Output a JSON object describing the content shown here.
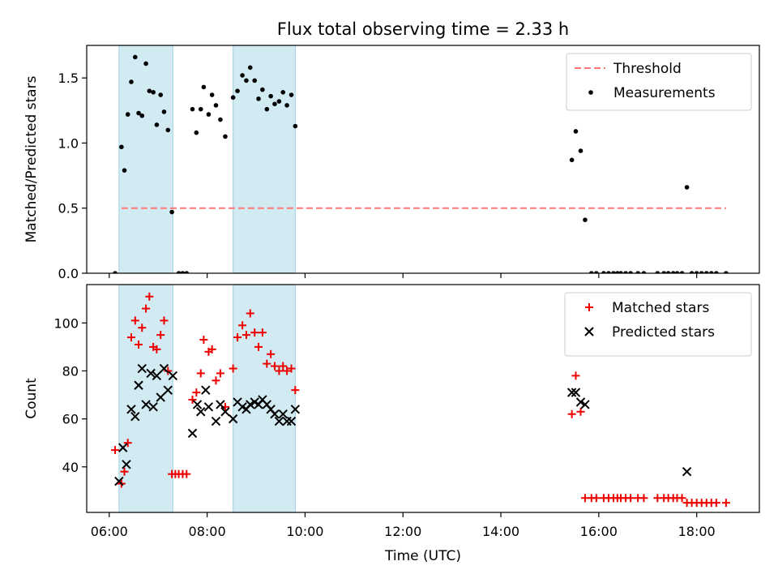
{
  "figure": {
    "title": "Flux total observing time = 2.33 h",
    "xlabel": "Time (UTC)"
  },
  "colors": {
    "threshold": "#ff7777",
    "measurement": "#000000",
    "matched": "#ee0000",
    "predicted": "#000000",
    "span_fill": "#add8e6"
  },
  "chart_data": [
    {
      "type": "scatter",
      "panel": "top",
      "title": "Flux total observing time = 2.33 h",
      "xlabel": "",
      "ylabel": "Matched/Predicted stars",
      "xlim": [
        5.54,
        19.28
      ],
      "ylim": [
        0,
        1.75
      ],
      "x_ticks": [
        6,
        8,
        10,
        12,
        14,
        16,
        18
      ],
      "x_tick_labels": [
        "06:00",
        "08:00",
        "10:00",
        "12:00",
        "14:00",
        "16:00",
        "18:00"
      ],
      "y_ticks": [
        0.0,
        0.5,
        1.0,
        1.5
      ],
      "y_tick_labels": [
        "0.0",
        "0.5",
        "1.0",
        "1.5"
      ],
      "shaded_spans": [
        [
          6.2,
          7.3
        ],
        [
          8.53,
          9.8
        ]
      ],
      "legend_position": "top-right",
      "threshold": {
        "name": "Threshold",
        "y": 0.5,
        "x_range": [
          6.25,
          18.6
        ]
      },
      "series": [
        {
          "name": "Measurements",
          "marker": "dot",
          "points": [
            [
              6.12,
              0.0
            ],
            [
              6.25,
              0.97
            ],
            [
              6.31,
              0.79
            ],
            [
              6.38,
              1.22
            ],
            [
              6.45,
              1.47
            ],
            [
              6.53,
              1.66
            ],
            [
              6.6,
              1.23
            ],
            [
              6.67,
              1.21
            ],
            [
              6.75,
              1.61
            ],
            [
              6.82,
              1.4
            ],
            [
              6.9,
              1.39
            ],
            [
              6.97,
              1.14
            ],
            [
              7.05,
              1.37
            ],
            [
              7.12,
              1.24
            ],
            [
              7.2,
              1.1
            ],
            [
              7.28,
              0.47
            ],
            [
              7.42,
              0.0
            ],
            [
              7.5,
              0.0
            ],
            [
              7.58,
              0.0
            ],
            [
              7.7,
              1.26
            ],
            [
              7.78,
              1.08
            ],
            [
              7.87,
              1.26
            ],
            [
              7.93,
              1.43
            ],
            [
              8.03,
              1.22
            ],
            [
              8.1,
              1.37
            ],
            [
              8.18,
              1.29
            ],
            [
              8.27,
              1.18
            ],
            [
              8.37,
              1.05
            ],
            [
              8.53,
              1.35
            ],
            [
              8.62,
              1.4
            ],
            [
              8.72,
              1.52
            ],
            [
              8.8,
              1.48
            ],
            [
              8.88,
              1.58
            ],
            [
              8.97,
              1.48
            ],
            [
              9.05,
              1.34
            ],
            [
              9.13,
              1.41
            ],
            [
              9.22,
              1.26
            ],
            [
              9.3,
              1.36
            ],
            [
              9.38,
              1.3
            ],
            [
              9.47,
              1.32
            ],
            [
              9.55,
              1.39
            ],
            [
              9.63,
              1.29
            ],
            [
              9.72,
              1.37
            ],
            [
              9.8,
              1.13
            ],
            [
              15.45,
              0.87
            ],
            [
              15.53,
              1.09
            ],
            [
              15.63,
              0.94
            ],
            [
              15.72,
              0.41
            ],
            [
              15.85,
              0.0
            ],
            [
              15.95,
              0.0
            ],
            [
              16.1,
              0.0
            ],
            [
              16.2,
              0.0
            ],
            [
              16.3,
              0.0
            ],
            [
              16.38,
              0.0
            ],
            [
              16.45,
              0.0
            ],
            [
              16.55,
              0.0
            ],
            [
              16.65,
              0.0
            ],
            [
              16.8,
              0.0
            ],
            [
              16.92,
              0.0
            ],
            [
              17.2,
              0.0
            ],
            [
              17.33,
              0.0
            ],
            [
              17.42,
              0.0
            ],
            [
              17.52,
              0.0
            ],
            [
              17.6,
              0.0
            ],
            [
              17.7,
              0.0
            ],
            [
              17.8,
              0.66
            ],
            [
              17.9,
              0.0
            ],
            [
              18.0,
              0.0
            ],
            [
              18.1,
              0.0
            ],
            [
              18.2,
              0.0
            ],
            [
              18.3,
              0.0
            ],
            [
              18.4,
              0.0
            ],
            [
              18.6,
              0.0
            ]
          ]
        }
      ]
    },
    {
      "type": "scatter",
      "panel": "bottom",
      "title": "",
      "xlabel": "Time (UTC)",
      "ylabel": "Count",
      "xlim": [
        5.54,
        19.28
      ],
      "ylim": [
        21,
        116
      ],
      "x_ticks": [
        6,
        8,
        10,
        12,
        14,
        16,
        18
      ],
      "x_tick_labels": [
        "06:00",
        "08:00",
        "10:00",
        "12:00",
        "14:00",
        "16:00",
        "18:00"
      ],
      "y_ticks": [
        40,
        60,
        80,
        100
      ],
      "y_tick_labels": [
        "40",
        "60",
        "80",
        "100"
      ],
      "shaded_spans": [
        [
          6.2,
          7.3
        ],
        [
          8.53,
          9.8
        ]
      ],
      "legend_position": "top-right",
      "series": [
        {
          "name": "Matched stars",
          "marker": "plus",
          "points": [
            [
              6.12,
              47
            ],
            [
              6.25,
              33
            ],
            [
              6.31,
              38
            ],
            [
              6.38,
              50
            ],
            [
              6.45,
              94
            ],
            [
              6.53,
              101
            ],
            [
              6.6,
              91
            ],
            [
              6.67,
              98
            ],
            [
              6.75,
              106
            ],
            [
              6.82,
              111
            ],
            [
              6.9,
              90
            ],
            [
              6.97,
              89
            ],
            [
              7.05,
              95
            ],
            [
              7.12,
              101
            ],
            [
              7.2,
              80
            ],
            [
              7.28,
              37
            ],
            [
              7.35,
              37
            ],
            [
              7.42,
              37
            ],
            [
              7.5,
              37
            ],
            [
              7.58,
              37
            ],
            [
              7.7,
              68
            ],
            [
              7.78,
              71
            ],
            [
              7.87,
              79
            ],
            [
              7.93,
              93
            ],
            [
              8.03,
              88
            ],
            [
              8.1,
              89
            ],
            [
              8.18,
              76
            ],
            [
              8.27,
              79
            ],
            [
              8.37,
              65
            ],
            [
              8.53,
              81
            ],
            [
              8.62,
              94
            ],
            [
              8.72,
              99
            ],
            [
              8.8,
              95
            ],
            [
              8.88,
              104
            ],
            [
              8.97,
              96
            ],
            [
              9.05,
              90
            ],
            [
              9.13,
              96
            ],
            [
              9.22,
              83
            ],
            [
              9.3,
              87
            ],
            [
              9.38,
              82
            ],
            [
              9.47,
              80
            ],
            [
              9.55,
              82
            ],
            [
              9.63,
              80
            ],
            [
              9.72,
              81
            ],
            [
              9.8,
              72
            ],
            [
              15.45,
              62
            ],
            [
              15.53,
              78
            ],
            [
              15.63,
              63
            ],
            [
              15.72,
              27
            ],
            [
              15.85,
              27
            ],
            [
              15.95,
              27
            ],
            [
              16.1,
              27
            ],
            [
              16.2,
              27
            ],
            [
              16.3,
              27
            ],
            [
              16.38,
              27
            ],
            [
              16.45,
              27
            ],
            [
              16.55,
              27
            ],
            [
              16.65,
              27
            ],
            [
              16.8,
              27
            ],
            [
              16.92,
              27
            ],
            [
              17.2,
              27
            ],
            [
              17.33,
              27
            ],
            [
              17.42,
              27
            ],
            [
              17.52,
              27
            ],
            [
              17.6,
              27
            ],
            [
              17.7,
              27
            ],
            [
              17.8,
              25
            ],
            [
              17.9,
              25
            ],
            [
              18.0,
              25
            ],
            [
              18.1,
              25
            ],
            [
              18.2,
              25
            ],
            [
              18.3,
              25
            ],
            [
              18.4,
              25
            ],
            [
              18.6,
              25
            ]
          ]
        },
        {
          "name": "Predicted stars",
          "marker": "x",
          "points": [
            [
              6.2,
              34
            ],
            [
              6.28,
              48
            ],
            [
              6.35,
              41
            ],
            [
              6.45,
              64
            ],
            [
              6.53,
              61
            ],
            [
              6.6,
              74
            ],
            [
              6.67,
              81
            ],
            [
              6.75,
              66
            ],
            [
              6.85,
              79
            ],
            [
              6.9,
              65
            ],
            [
              6.97,
              78
            ],
            [
              7.05,
              69
            ],
            [
              7.12,
              81
            ],
            [
              7.2,
              72
            ],
            [
              7.3,
              78
            ],
            [
              7.7,
              54
            ],
            [
              7.8,
              66
            ],
            [
              7.87,
              63
            ],
            [
              7.97,
              72
            ],
            [
              8.03,
              65
            ],
            [
              8.18,
              59
            ],
            [
              8.27,
              66
            ],
            [
              8.37,
              63
            ],
            [
              8.53,
              60
            ],
            [
              8.62,
              67
            ],
            [
              8.72,
              65
            ],
            [
              8.8,
              64
            ],
            [
              8.88,
              66
            ],
            [
              8.97,
              67
            ],
            [
              9.05,
              66
            ],
            [
              9.13,
              68
            ],
            [
              9.22,
              66
            ],
            [
              9.3,
              64
            ],
            [
              9.38,
              62
            ],
            [
              9.47,
              59
            ],
            [
              9.55,
              62
            ],
            [
              9.63,
              59
            ],
            [
              9.72,
              59
            ],
            [
              9.8,
              64
            ],
            [
              15.45,
              71
            ],
            [
              15.53,
              71
            ],
            [
              15.63,
              67
            ],
            [
              15.72,
              66
            ],
            [
              17.8,
              38
            ]
          ]
        }
      ]
    }
  ]
}
